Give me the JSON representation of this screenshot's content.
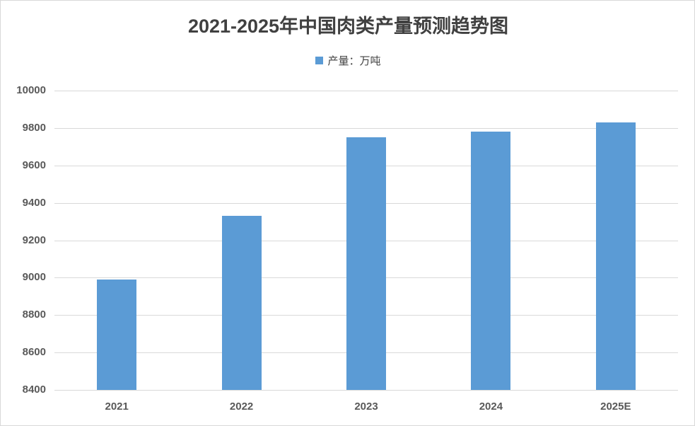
{
  "chart_data": {
    "type": "bar",
    "title": "2021-2025年中国肉类产量预测趋势图",
    "categories": [
      "2021",
      "2022",
      "2023",
      "2024",
      "2025E"
    ],
    "series": [
      {
        "name": "产量：万吨",
        "color": "#5b9bd5",
        "values": [
          8990,
          9330,
          9750,
          9780,
          9830
        ]
      }
    ],
    "xlabel": "",
    "ylabel": "",
    "ylim": [
      8400,
      10000
    ],
    "yticks": [
      "10000",
      "9800",
      "9600",
      "9400",
      "9200",
      "9000",
      "8800",
      "8600",
      "8400"
    ],
    "grid": true,
    "legend_position": "top"
  }
}
